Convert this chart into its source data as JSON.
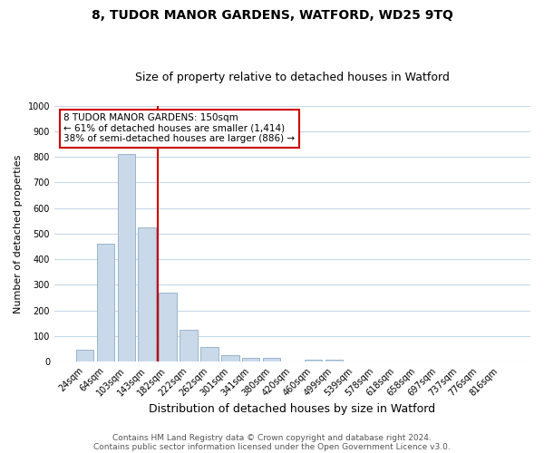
{
  "title": "8, TUDOR MANOR GARDENS, WATFORD, WD25 9TQ",
  "subtitle": "Size of property relative to detached houses in Watford",
  "xlabel": "Distribution of detached houses by size in Watford",
  "ylabel": "Number of detached properties",
  "bar_labels": [
    "24sqm",
    "64sqm",
    "103sqm",
    "143sqm",
    "182sqm",
    "222sqm",
    "262sqm",
    "301sqm",
    "341sqm",
    "380sqm",
    "420sqm",
    "460sqm",
    "499sqm",
    "539sqm",
    "578sqm",
    "618sqm",
    "658sqm",
    "697sqm",
    "737sqm",
    "776sqm",
    "816sqm"
  ],
  "bar_values": [
    46,
    460,
    810,
    525,
    270,
    125,
    57,
    25,
    13,
    13,
    0,
    7,
    7,
    0,
    0,
    0,
    0,
    0,
    0,
    0,
    0
  ],
  "bar_color": "#c9d9ea",
  "bar_edgecolor": "#9ab5cc",
  "vline_color": "#cc0000",
  "ylim": [
    0,
    1000
  ],
  "yticks": [
    0,
    100,
    200,
    300,
    400,
    500,
    600,
    700,
    800,
    900,
    1000
  ],
  "annotation_title": "8 TUDOR MANOR GARDENS: 150sqm",
  "annotation_line1": "← 61% of detached houses are smaller (1,414)",
  "annotation_line2": "38% of semi-detached houses are larger (886) →",
  "annotation_box_facecolor": "#ffffff",
  "annotation_box_edgecolor": "#cc0000",
  "footer1": "Contains HM Land Registry data © Crown copyright and database right 2024.",
  "footer2": "Contains public sector information licensed under the Open Government Licence v3.0.",
  "bg_color": "#ffffff",
  "grid_color": "#c8d8e8",
  "title_fontsize": 10,
  "subtitle_fontsize": 9,
  "xlabel_fontsize": 9,
  "ylabel_fontsize": 8,
  "tick_fontsize": 7,
  "footer_fontsize": 6.5
}
